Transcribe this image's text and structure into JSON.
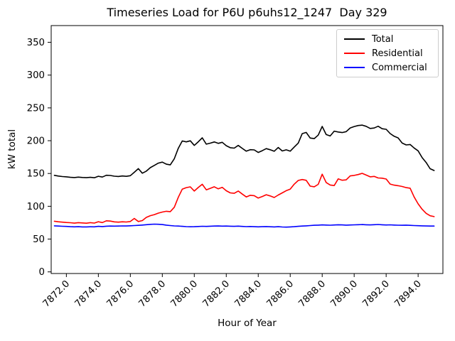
{
  "chart_data": {
    "type": "line",
    "title": "Timeseries Load for P6U p6uhs12_1247  Day 329",
    "xlabel": "Hour of Year",
    "ylabel": "kW total",
    "grid": false,
    "legend_position": "upper right",
    "xlim": [
      7871.05,
      7895.55
    ],
    "ylim": [
      -2.5,
      375.5
    ],
    "x_ticks": [
      7872,
      7874,
      7876,
      7878,
      7880,
      7882,
      7884,
      7886,
      7888,
      7890,
      7892,
      7894
    ],
    "x_tick_labels": [
      "7872.0",
      "7874.0",
      "7876.0",
      "7878.0",
      "7880.0",
      "7882.0",
      "7884.0",
      "7886.0",
      "7888.0",
      "7890.0",
      "7892.0",
      "7894.0"
    ],
    "y_ticks": [
      0,
      50,
      100,
      150,
      200,
      250,
      300,
      350
    ],
    "y_tick_labels": [
      "0",
      "50",
      "100",
      "150",
      "200",
      "250",
      "300",
      "350"
    ],
    "x": [
      7871.25,
      7871.5,
      7871.75,
      7872,
      7872.25,
      7872.5,
      7872.75,
      7873,
      7873.25,
      7873.5,
      7873.75,
      7874,
      7874.25,
      7874.5,
      7874.75,
      7875,
      7875.25,
      7875.5,
      7875.75,
      7876,
      7876.25,
      7876.5,
      7876.75,
      7877,
      7877.25,
      7877.5,
      7877.75,
      7878,
      7878.25,
      7878.5,
      7878.75,
      7879,
      7879.25,
      7879.5,
      7879.75,
      7880,
      7880.25,
      7880.5,
      7880.75,
      7881,
      7881.25,
      7881.5,
      7881.75,
      7882,
      7882.25,
      7882.5,
      7882.75,
      7883,
      7883.25,
      7883.5,
      7883.75,
      7884,
      7884.25,
      7884.5,
      7884.75,
      7885,
      7885.25,
      7885.5,
      7885.75,
      7886,
      7886.25,
      7886.5,
      7886.75,
      7887,
      7887.25,
      7887.5,
      7887.75,
      7888,
      7888.25,
      7888.5,
      7888.75,
      7889,
      7889.25,
      7889.5,
      7889.75,
      7890,
      7890.25,
      7890.5,
      7890.75,
      7891,
      7891.25,
      7891.5,
      7891.75,
      7892,
      7892.25,
      7892.5,
      7892.75,
      7893,
      7893.25,
      7893.5,
      7893.75,
      7894,
      7894.25,
      7894.5,
      7894.75,
      7895
    ],
    "series": [
      {
        "name": "Total",
        "color": "#000000",
        "values": [
          147.2,
          146.1,
          145.3,
          144.9,
          144.2,
          143.8,
          144.5,
          143.9,
          143.6,
          144.2,
          143.5,
          145.8,
          144.6,
          147.3,
          147.0,
          145.9,
          145.4,
          146.2,
          145.7,
          146.6,
          151.8,
          157.4,
          150.4,
          153.6,
          158.9,
          162.4,
          165.8,
          167.3,
          164.2,
          163.1,
          172.5,
          188.4,
          199.6,
          198.2,
          199.8,
          192.8,
          198.3,
          204.4,
          194.7,
          196.2,
          198.1,
          195.9,
          197.6,
          192.4,
          189.3,
          188.7,
          192.8,
          188.2,
          184.0,
          186.3,
          186.0,
          182.1,
          184.8,
          187.9,
          186.2,
          183.9,
          189.6,
          184.3,
          186.1,
          184.0,
          190.2,
          196.4,
          210.8,
          212.6,
          204.1,
          203.2,
          208.5,
          221.7,
          209.4,
          207.2,
          214.6,
          213.2,
          212.4,
          213.8,
          219.4,
          221.6,
          223.1,
          223.8,
          221.9,
          218.7,
          219.3,
          222.0,
          218.2,
          217.4,
          210.9,
          206.8,
          204.3,
          196.4,
          193.5,
          194.2,
          188.9,
          184.5,
          174.2,
          166.8,
          157.3,
          154.6
        ]
      },
      {
        "name": "Residential",
        "color": "#ff0000",
        "values": [
          77.2,
          76.4,
          75.8,
          75.3,
          74.9,
          74.3,
          75.0,
          74.6,
          74.2,
          75.1,
          74.4,
          76.5,
          75.2,
          77.9,
          77.4,
          76.2,
          75.8,
          76.4,
          76.0,
          76.8,
          81.4,
          76.8,
          78.2,
          83.1,
          85.7,
          87.3,
          89.6,
          91.2,
          92.4,
          91.8,
          98.5,
          113.7,
          126.2,
          128.4,
          129.6,
          123.3,
          128.7,
          133.5,
          125.1,
          127.4,
          129.8,
          126.6,
          128.9,
          123.7,
          120.4,
          119.8,
          123.2,
          118.6,
          114.3,
          116.8,
          116.2,
          112.5,
          114.9,
          117.6,
          115.8,
          113.4,
          117.2,
          120.4,
          123.8,
          126.1,
          133.6,
          139.4,
          140.8,
          139.6,
          130.7,
          129.8,
          133.4,
          148.9,
          136.2,
          132.4,
          131.6,
          141.8,
          139.7,
          140.2,
          146.3,
          147.1,
          148.4,
          150.2,
          147.6,
          144.9,
          145.6,
          143.2,
          142.8,
          141.5,
          133.9,
          132.2,
          131.4,
          130.2,
          128.4,
          127.6,
          114.3,
          103.8,
          95.4,
          89.2,
          85.6,
          84.3
        ]
      },
      {
        "name": "Commercial",
        "color": "#0000ff",
        "values": [
          70.2,
          69.8,
          69.5,
          69.3,
          68.9,
          68.7,
          68.9,
          68.6,
          68.5,
          68.8,
          68.7,
          69.4,
          69.1,
          69.6,
          69.8,
          69.7,
          69.9,
          70.1,
          70.0,
          70.3,
          70.6,
          70.9,
          71.4,
          71.9,
          72.4,
          72.8,
          72.6,
          72.1,
          71.3,
          70.6,
          70.1,
          69.8,
          69.4,
          69.0,
          68.8,
          68.9,
          69.2,
          69.5,
          69.3,
          69.6,
          69.8,
          70.0,
          69.7,
          69.9,
          69.6,
          69.4,
          69.7,
          69.3,
          69.0,
          69.2,
          68.9,
          68.7,
          68.9,
          69.1,
          68.8,
          68.6,
          68.9,
          68.4,
          68.2,
          68.5,
          68.9,
          69.4,
          69.8,
          70.2,
          70.6,
          71.0,
          71.3,
          71.6,
          71.4,
          71.2,
          71.5,
          71.8,
          71.6,
          71.3,
          71.5,
          71.7,
          71.9,
          72.1,
          71.8,
          71.6,
          71.9,
          72.2,
          71.8,
          71.5,
          71.7,
          71.4,
          71.2,
          71.0,
          71.3,
          70.9,
          70.6,
          70.4,
          70.2,
          70.0,
          69.8,
          69.9
        ]
      }
    ]
  }
}
